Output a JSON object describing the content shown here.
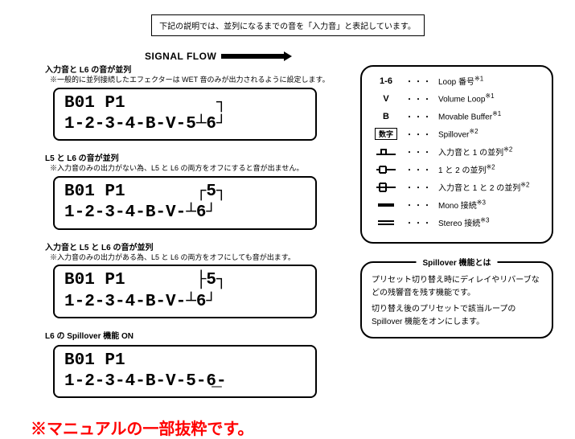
{
  "top_note": "下記の説明では、並列になるまでの音を「入力音」と表記しています。",
  "signal_flow_label": "SIGNAL FLOW",
  "sections": [
    {
      "title": "入力音と L6 の音が並列",
      "note": "※一般的に並列接続したエフェクターは WET 音のみが出力されるように設定します。",
      "lcd1": "B01 P1         ┐",
      "lcd2": "1-2-3-4-B-V-5┴6┘"
    },
    {
      "title": "L5 と L6 の音が並列",
      "note": "※入力音のみの出力がない為、L5 と L6 の両方をオフにすると音が出ません。",
      "lcd1": "B01 P1       ┌5┐",
      "lcd2": "1-2-3-4-B-V-┴6┘"
    },
    {
      "title": "入力音と L5 と L6 の音が並列",
      "note": "※入力音のみの出力がある為、L5 と L6 の両方をオフにしても音が出ます。",
      "lcd1": "B01 P1       ├5┐",
      "lcd2": "1-2-3-4-B-V-┴6┘"
    },
    {
      "title": "L6 の Spillover 機能 ON",
      "note": "",
      "lcd1": "B01 P1",
      "lcd2": "1-2-3-4-B-V-5-6̲-"
    }
  ],
  "legend": {
    "rows": [
      {
        "sym": "1-6",
        "desc": "Loop 番号",
        "sup": "※1",
        "type": "text"
      },
      {
        "sym": "V",
        "desc": "Volume Loop",
        "sup": "※1",
        "type": "text"
      },
      {
        "sym": "B",
        "desc": "Movable Buffer",
        "sup": "※1",
        "type": "text"
      },
      {
        "sym": "数字",
        "desc": "Spillover",
        "sup": "※2",
        "type": "numbox"
      },
      {
        "sym": "icon1",
        "desc": "入力音と 1 の並列",
        "sup": "※2",
        "type": "svg1"
      },
      {
        "sym": "icon2",
        "desc": "1 と 2 の並列",
        "sup": "※2",
        "type": "svg2"
      },
      {
        "sym": "icon3",
        "desc": "入力音と 1 と 2 の並列",
        "sup": "※2",
        "type": "svg3"
      },
      {
        "sym": "mono",
        "desc": "Mono 接続",
        "sup": "※3",
        "type": "mono"
      },
      {
        "sym": "stereo",
        "desc": "Stereo 接続",
        "sup": "※3",
        "type": "stereo"
      }
    ]
  },
  "spillover": {
    "title": "Spillover 機能とは",
    "body1": "プリセット切り替え時にディレイやリバーブなどの残響音を残す機能です。",
    "body2": "切り替え後のプリセットで該当ループの Spillover 機能をオンにします。"
  },
  "footer": "※マニュアルの一部抜粋です。"
}
